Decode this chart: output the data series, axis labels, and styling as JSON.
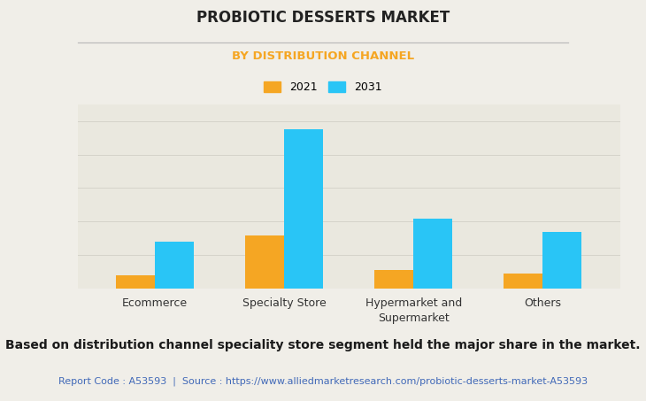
{
  "title": "PROBIOTIC DESSERTS MARKET",
  "subtitle": "BY DISTRIBUTION CHANNEL",
  "categories": [
    "Ecommerce",
    "Specialty Store",
    "Hypermarket and\nSupermarket",
    "Others"
  ],
  "values_2021": [
    0.8,
    3.2,
    1.1,
    0.9
  ],
  "values_2031": [
    2.8,
    9.5,
    4.2,
    3.4
  ],
  "color_2021": "#F5A623",
  "color_2031": "#29C5F6",
  "fig_background": "#F0EEE8",
  "plot_background": "#EAE8DF",
  "title_color": "#222222",
  "subtitle_color": "#F5A623",
  "legend_labels": [
    "2021",
    "2031"
  ],
  "footer_text": "Based on distribution channel speciality store segment held the major share in the market.",
  "report_code": "Report Code : A53593  |  Source : https://www.alliedmarketresearch.com/probiotic-desserts-market-A53593",
  "bar_width": 0.3,
  "ylim": [
    0,
    11
  ],
  "grid_color": "#d5d3ca",
  "separator_color": "#bbbbbb",
  "xtick_fontsize": 9,
  "footer_fontsize": 10,
  "report_fontsize": 8
}
